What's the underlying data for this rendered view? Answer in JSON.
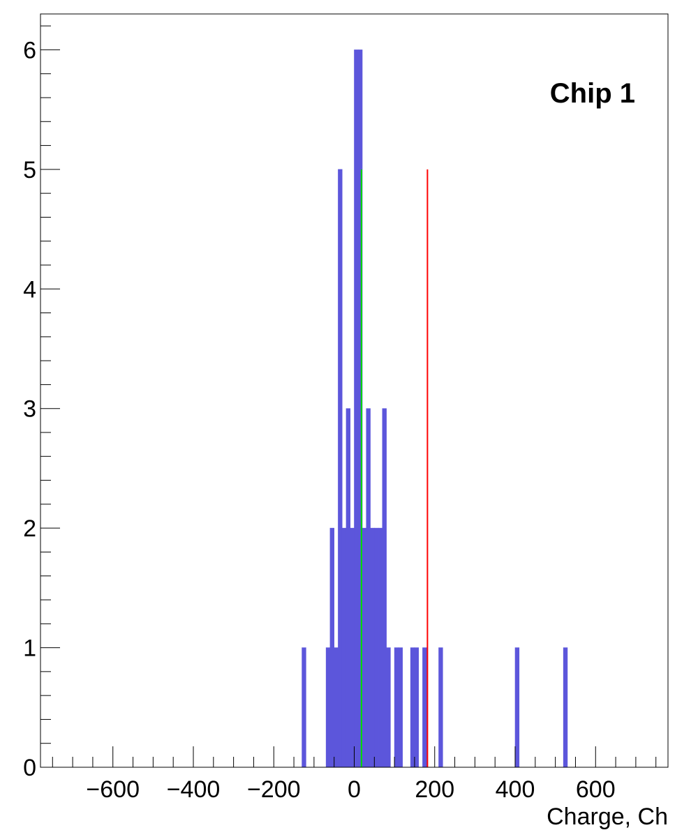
{
  "chart_data": {
    "type": "bar",
    "title": "",
    "xlabel": "Charge, Ch",
    "ylabel": "",
    "annotation": "Chip 1",
    "xlim": [
      -780,
      780
    ],
    "ylim": [
      0,
      6.3
    ],
    "bin_width": 10,
    "bar_color": "#5c56db",
    "x_ticks": [
      -600,
      -400,
      -200,
      0,
      200,
      400,
      600
    ],
    "x_tick_labels": [
      "−600",
      "−400",
      "−200",
      "0",
      "200",
      "400",
      "600"
    ],
    "y_ticks": [
      0,
      1,
      2,
      3,
      4,
      5,
      6
    ],
    "y_tick_labels": [
      "0",
      "1",
      "2",
      "3",
      "4",
      "5",
      "6"
    ],
    "grid": false,
    "legend": "none",
    "bins": [
      {
        "x": -130,
        "count": 1
      },
      {
        "x": -70,
        "count": 1
      },
      {
        "x": -60,
        "count": 2
      },
      {
        "x": -50,
        "count": 1
      },
      {
        "x": -40,
        "count": 5
      },
      {
        "x": -30,
        "count": 2
      },
      {
        "x": -20,
        "count": 3
      },
      {
        "x": -10,
        "count": 2
      },
      {
        "x": 0,
        "count": 6
      },
      {
        "x": 10,
        "count": 6
      },
      {
        "x": 20,
        "count": 2
      },
      {
        "x": 30,
        "count": 3
      },
      {
        "x": 40,
        "count": 2
      },
      {
        "x": 50,
        "count": 2
      },
      {
        "x": 60,
        "count": 2
      },
      {
        "x": 70,
        "count": 3
      },
      {
        "x": 80,
        "count": 1
      },
      {
        "x": 100,
        "count": 1
      },
      {
        "x": 110,
        "count": 1
      },
      {
        "x": 140,
        "count": 1
      },
      {
        "x": 150,
        "count": 1
      },
      {
        "x": 170,
        "count": 1
      },
      {
        "x": 210,
        "count": 1
      },
      {
        "x": 400,
        "count": 1
      },
      {
        "x": 520,
        "count": 1
      }
    ],
    "vertical_lines": [
      {
        "x": 18,
        "y_top": 5,
        "color": "#00dd00"
      },
      {
        "x": 182,
        "y_top": 5,
        "color": "#ff0000"
      }
    ]
  }
}
